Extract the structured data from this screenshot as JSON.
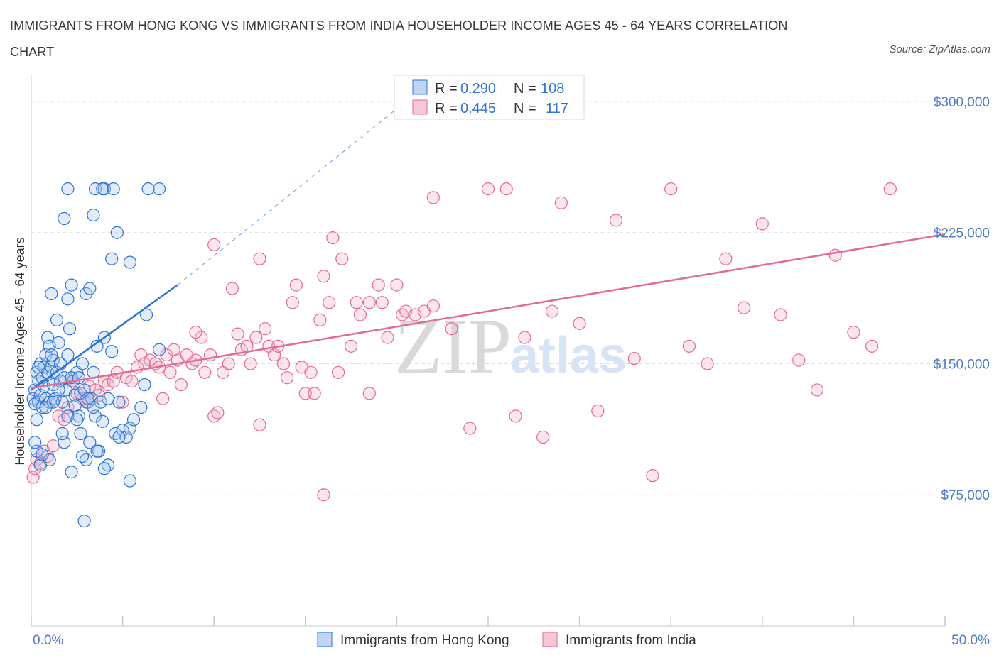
{
  "title": "IMMIGRANTS FROM HONG KONG VS IMMIGRANTS FROM INDIA HOUSEHOLDER INCOME AGES 45 - 64 YEARS CORRELATION CHART",
  "source": "Source: ZipAtlas.com",
  "watermark": {
    "zip": "ZIP",
    "atlas": "atlas"
  },
  "colors": {
    "hong_kong": "#2f74d0",
    "india": "#e46a94",
    "hk_fill": "#a9c7f0",
    "india_fill": "#f3b6ca",
    "axis_label": "#4a7cc9"
  },
  "legend": {
    "rows": [
      {
        "r_label": "R =",
        "r_value": "0.290",
        "n_label": "N =",
        "n_value": "108"
      },
      {
        "r_label": "R =",
        "r_value": "0.445",
        "n_label": "N =",
        "n_value": "117"
      }
    ]
  },
  "bottom_legend": [
    "Immigrants from Hong Kong",
    "Immigrants from India"
  ],
  "chart_data": {
    "type": "scatter",
    "title": "IMMIGRANTS FROM HONG KONG VS IMMIGRANTS FROM INDIA HOUSEHOLDER INCOME AGES 45 - 64 YEARS CORRELATION CHART",
    "xlabel": "",
    "ylabel": "Householder Income Ages 45 - 64 years",
    "xlim": [
      0,
      50
    ],
    "ylim": [
      0,
      315000
    ],
    "x_tick_labels": [
      "0.0%",
      "50.0%"
    ],
    "y_ticks": [
      75000,
      150000,
      225000,
      300000
    ],
    "y_tick_labels": [
      "$75,000",
      "$150,000",
      "$225,000",
      "$300,000"
    ],
    "grid": true,
    "legend_position": "top-center",
    "series": [
      {
        "name": "Immigrants from Hong Kong",
        "color": "#2f74d0",
        "R": 0.29,
        "N": 108,
        "trend": {
          "x": [
            0,
            8
          ],
          "y": [
            135000,
            195000
          ],
          "dashed_extension": {
            "x": [
              8,
              20.5
            ],
            "y": [
              195000,
              300000
            ]
          }
        },
        "points": [
          [
            0.1,
            130000
          ],
          [
            0.2,
            135000
          ],
          [
            0.2,
            127000
          ],
          [
            0.3,
            145000
          ],
          [
            0.3,
            118000
          ],
          [
            0.4,
            128000
          ],
          [
            0.4,
            140000
          ],
          [
            0.5,
            150000
          ],
          [
            0.5,
            132000
          ],
          [
            0.6,
            142000
          ],
          [
            0.6,
            125000
          ],
          [
            0.7,
            148000
          ],
          [
            0.7,
            137000
          ],
          [
            0.8,
            130000
          ],
          [
            0.8,
            155000
          ],
          [
            0.9,
            145000
          ],
          [
            0.9,
            165000
          ],
          [
            1.0,
            128000
          ],
          [
            1.0,
            160000
          ],
          [
            1.1,
            190000
          ],
          [
            1.1,
            148000
          ],
          [
            1.2,
            138000
          ],
          [
            1.2,
            152000
          ],
          [
            1.3,
            130000
          ],
          [
            1.4,
            145000
          ],
          [
            1.4,
            175000
          ],
          [
            1.5,
            162000
          ],
          [
            1.6,
            140000
          ],
          [
            1.6,
            150000
          ],
          [
            1.7,
            128000
          ],
          [
            1.8,
            142000
          ],
          [
            1.9,
            135000
          ],
          [
            2.0,
            155000
          ],
          [
            2.0,
            187000
          ],
          [
            2.1,
            170000
          ],
          [
            2.2,
            195000
          ],
          [
            2.3,
            140000
          ],
          [
            2.4,
            132000
          ],
          [
            2.4,
            126000
          ],
          [
            2.5,
            145000
          ],
          [
            2.6,
            120000
          ],
          [
            2.7,
            133000
          ],
          [
            2.8,
            150000
          ],
          [
            2.9,
            135000
          ],
          [
            3.0,
            190000
          ],
          [
            3.1,
            128000
          ],
          [
            3.2,
            193000
          ],
          [
            3.3,
            130000
          ],
          [
            3.4,
            145000
          ],
          [
            3.5,
            120000
          ],
          [
            3.6,
            160000
          ],
          [
            3.7,
            100000
          ],
          [
            3.8,
            128000
          ],
          [
            3.9,
            117000
          ],
          [
            4.0,
            165000
          ],
          [
            4.2,
            130000
          ],
          [
            4.4,
            157000
          ],
          [
            4.6,
            110000
          ],
          [
            4.8,
            128000
          ],
          [
            5.0,
            112000
          ],
          [
            5.2,
            108000
          ],
          [
            5.4,
            113000
          ],
          [
            5.6,
            118000
          ],
          [
            6.0,
            125000
          ],
          [
            6.2,
            138000
          ],
          [
            7.0,
            158000
          ],
          [
            1.2,
            128000
          ],
          [
            0.8,
            125000
          ],
          [
            1.5,
            135000
          ],
          [
            2.2,
            142000
          ],
          [
            2.7,
            110000
          ],
          [
            3.2,
            105000
          ],
          [
            3.6,
            100000
          ],
          [
            4.2,
            92000
          ],
          [
            2.2,
            88000
          ],
          [
            4.0,
            90000
          ],
          [
            0.5,
            92000
          ],
          [
            1.0,
            95000
          ],
          [
            0.3,
            100000
          ],
          [
            0.2,
            105000
          ],
          [
            0.6,
            98000
          ],
          [
            3.0,
            95000
          ],
          [
            5.4,
            83000
          ],
          [
            1.8,
            105000
          ],
          [
            2.8,
            97000
          ],
          [
            2.0,
            120000
          ],
          [
            2.5,
            118000
          ],
          [
            3.4,
            125000
          ],
          [
            1.7,
            110000
          ],
          [
            4.8,
            108000
          ],
          [
            2.9,
            60000
          ],
          [
            1.8,
            233000
          ],
          [
            3.4,
            235000
          ],
          [
            4.4,
            210000
          ],
          [
            5.4,
            208000
          ],
          [
            4.7,
            225000
          ],
          [
            6.3,
            178000
          ],
          [
            2.0,
            250000
          ],
          [
            3.5,
            250000
          ],
          [
            4.0,
            250000
          ],
          [
            3.9,
            250000
          ],
          [
            4.5,
            250000
          ],
          [
            6.4,
            250000
          ],
          [
            7.0,
            250000
          ],
          [
            0.4,
            148000
          ],
          [
            1.1,
            155000
          ],
          [
            2.6,
            142000
          ],
          [
            3.1,
            130000
          ]
        ]
      },
      {
        "name": "Immigrants from India",
        "color": "#e46a94",
        "R": 0.445,
        "N": 117,
        "trend": {
          "x": [
            0,
            50
          ],
          "y": [
            136000,
            224000
          ]
        },
        "points": [
          [
            0.1,
            85000
          ],
          [
            0.2,
            90000
          ],
          [
            0.3,
            95000
          ],
          [
            0.5,
            93000
          ],
          [
            0.7,
            100000
          ],
          [
            0.9,
            97000
          ],
          [
            1.2,
            103000
          ],
          [
            1.5,
            120000
          ],
          [
            1.8,
            118000
          ],
          [
            2.0,
            125000
          ],
          [
            2.2,
            140000
          ],
          [
            2.5,
            133000
          ],
          [
            2.8,
            130000
          ],
          [
            3.0,
            128000
          ],
          [
            3.2,
            137000
          ],
          [
            3.5,
            135000
          ],
          [
            3.7,
            132000
          ],
          [
            4.0,
            140000
          ],
          [
            4.2,
            138000
          ],
          [
            4.5,
            140000
          ],
          [
            4.7,
            145000
          ],
          [
            5.0,
            128000
          ],
          [
            5.2,
            142000
          ],
          [
            5.5,
            140000
          ],
          [
            5.8,
            148000
          ],
          [
            6.0,
            155000
          ],
          [
            6.2,
            150000
          ],
          [
            6.5,
            152000
          ],
          [
            6.8,
            150000
          ],
          [
            7.0,
            148000
          ],
          [
            7.2,
            130000
          ],
          [
            7.4,
            155000
          ],
          [
            7.6,
            145000
          ],
          [
            7.8,
            158000
          ],
          [
            8.0,
            152000
          ],
          [
            8.2,
            138000
          ],
          [
            8.5,
            155000
          ],
          [
            8.8,
            150000
          ],
          [
            9.0,
            152000
          ],
          [
            9.3,
            165000
          ],
          [
            9.5,
            145000
          ],
          [
            9.8,
            155000
          ],
          [
            10.0,
            120000
          ],
          [
            10.2,
            122000
          ],
          [
            10.5,
            145000
          ],
          [
            10.8,
            150000
          ],
          [
            11.0,
            193000
          ],
          [
            11.3,
            167000
          ],
          [
            11.5,
            158000
          ],
          [
            11.8,
            160000
          ],
          [
            12.0,
            150000
          ],
          [
            12.3,
            165000
          ],
          [
            12.5,
            115000
          ],
          [
            12.8,
            170000
          ],
          [
            13.0,
            160000
          ],
          [
            13.3,
            155000
          ],
          [
            13.5,
            160000
          ],
          [
            13.8,
            150000
          ],
          [
            14.0,
            142000
          ],
          [
            14.3,
            185000
          ],
          [
            14.5,
            195000
          ],
          [
            14.8,
            148000
          ],
          [
            15.0,
            133000
          ],
          [
            15.3,
            145000
          ],
          [
            15.5,
            133000
          ],
          [
            15.8,
            175000
          ],
          [
            16.0,
            200000
          ],
          [
            16.3,
            185000
          ],
          [
            16.5,
            222000
          ],
          [
            16.8,
            145000
          ],
          [
            17.0,
            210000
          ],
          [
            17.5,
            160000
          ],
          [
            17.8,
            185000
          ],
          [
            18.0,
            178000
          ],
          [
            18.5,
            185000
          ],
          [
            19.0,
            195000
          ],
          [
            19.2,
            185000
          ],
          [
            19.5,
            165000
          ],
          [
            20.0,
            195000
          ],
          [
            20.3,
            178000
          ],
          [
            20.5,
            180000
          ],
          [
            21.0,
            178000
          ],
          [
            21.5,
            180000
          ],
          [
            22.0,
            245000
          ],
          [
            23.0,
            170000
          ],
          [
            24.0,
            113000
          ],
          [
            25.0,
            250000
          ],
          [
            26.0,
            250000
          ],
          [
            27.0,
            165000
          ],
          [
            28.0,
            108000
          ],
          [
            29.0,
            242000
          ],
          [
            30.0,
            173000
          ],
          [
            31.0,
            123000
          ],
          [
            32.0,
            232000
          ],
          [
            33.0,
            153000
          ],
          [
            34.0,
            86000
          ],
          [
            35.0,
            250000
          ],
          [
            36.0,
            160000
          ],
          [
            37.0,
            150000
          ],
          [
            38.0,
            210000
          ],
          [
            39.0,
            182000
          ],
          [
            40.0,
            230000
          ],
          [
            41.0,
            178000
          ],
          [
            42.0,
            152000
          ],
          [
            43.0,
            135000
          ],
          [
            44.0,
            212000
          ],
          [
            45.0,
            168000
          ],
          [
            46.0,
            160000
          ],
          [
            47.0,
            250000
          ],
          [
            18.5,
            133000
          ],
          [
            12.5,
            210000
          ],
          [
            10.0,
            218000
          ],
          [
            9.0,
            168000
          ],
          [
            16.0,
            75000
          ],
          [
            22.0,
            183000
          ],
          [
            26.5,
            120000
          ],
          [
            28.5,
            180000
          ]
        ]
      }
    ]
  }
}
